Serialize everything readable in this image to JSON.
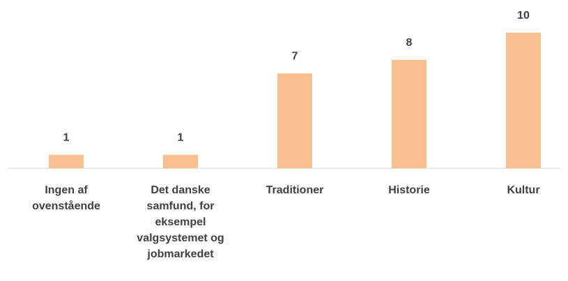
{
  "chart_data": {
    "type": "bar",
    "categories": [
      "Ingen af ovenstående",
      "Det danske samfund, for eksempel valgsystemet og jobmarkedet",
      "Traditioner",
      "Historie",
      "Kultur"
    ],
    "values": [
      1,
      1,
      7,
      8,
      10
    ],
    "color": "#f9c08f"
  }
}
